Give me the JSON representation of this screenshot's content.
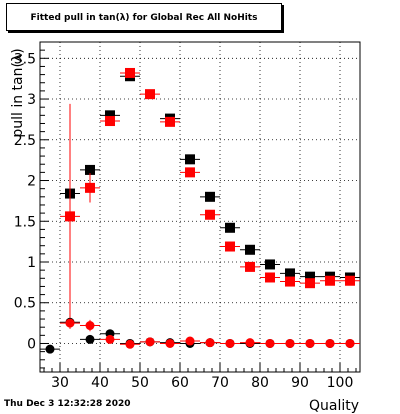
{
  "stamp": "Thu Dec  3 12:32:28 2020",
  "chart_data": {
    "type": "scatter",
    "title": "Fitted pull in tan(λ) for Global Rec All NoHits",
    "xlabel": "Quality",
    "ylabel": "pull in tan(λ)",
    "xlim": [
      25,
      105
    ],
    "ylim": [
      -0.35,
      3.7
    ],
    "xticks": [
      30,
      40,
      50,
      60,
      70,
      80,
      90,
      100
    ],
    "yticks": [
      0,
      0.5,
      1,
      1.5,
      2,
      2.5,
      3,
      3.5
    ],
    "grid": true,
    "series": [
      {
        "marker": "square",
        "color": "#000000",
        "points": [
          {
            "x": 32.5,
            "y": 1.84
          },
          {
            "x": 37.5,
            "y": 2.13
          },
          {
            "x": 42.5,
            "y": 2.8
          },
          {
            "x": 47.5,
            "y": 3.28
          },
          {
            "x": 57.5,
            "y": 2.76
          },
          {
            "x": 62.5,
            "y": 2.26
          },
          {
            "x": 67.5,
            "y": 1.8
          },
          {
            "x": 72.5,
            "y": 1.42
          },
          {
            "x": 77.5,
            "y": 1.15
          },
          {
            "x": 82.5,
            "y": 0.97
          },
          {
            "x": 87.5,
            "y": 0.86
          },
          {
            "x": 92.5,
            "y": 0.82
          },
          {
            "x": 97.5,
            "y": 0.82
          },
          {
            "x": 102.5,
            "y": 0.81
          }
        ]
      },
      {
        "marker": "square",
        "color": "#ff0000",
        "points": [
          {
            "x": 32.5,
            "y": 1.56,
            "yerr": 1.38
          },
          {
            "x": 37.5,
            "y": 1.91,
            "yerr": 0.18
          },
          {
            "x": 42.5,
            "y": 2.73
          },
          {
            "x": 47.5,
            "y": 3.32
          },
          {
            "x": 52.5,
            "y": 3.06
          },
          {
            "x": 57.5,
            "y": 2.72
          },
          {
            "x": 62.5,
            "y": 2.1
          },
          {
            "x": 67.5,
            "y": 1.58
          },
          {
            "x": 72.5,
            "y": 1.19
          },
          {
            "x": 77.5,
            "y": 0.94
          },
          {
            "x": 82.5,
            "y": 0.81
          },
          {
            "x": 87.5,
            "y": 0.76
          },
          {
            "x": 92.5,
            "y": 0.74
          },
          {
            "x": 97.5,
            "y": 0.77
          },
          {
            "x": 102.5,
            "y": 0.77
          }
        ]
      },
      {
        "marker": "circle",
        "color": "#000000",
        "points": [
          {
            "x": 27.5,
            "y": -0.07
          },
          {
            "x": 32.5,
            "y": 0.26
          },
          {
            "x": 37.5,
            "y": 0.05
          },
          {
            "x": 42.5,
            "y": 0.12
          },
          {
            "x": 47.5,
            "y": 0.0
          },
          {
            "x": 52.5,
            "y": 0.02
          },
          {
            "x": 57.5,
            "y": 0.01
          },
          {
            "x": 62.5,
            "y": 0.0
          },
          {
            "x": 67.5,
            "y": 0.01
          },
          {
            "x": 72.5,
            "y": 0.0
          },
          {
            "x": 77.5,
            "y": 0.0
          },
          {
            "x": 82.5,
            "y": 0.0
          },
          {
            "x": 87.5,
            "y": 0.0
          },
          {
            "x": 92.5,
            "y": 0.0
          },
          {
            "x": 97.5,
            "y": 0.0
          },
          {
            "x": 102.5,
            "y": 0.0
          }
        ]
      },
      {
        "marker": "circle",
        "color": "#ff0000",
        "points": [
          {
            "x": 32.5,
            "y": 0.25
          },
          {
            "x": 37.5,
            "y": 0.22,
            "yerr": 0.07
          },
          {
            "x": 42.5,
            "y": 0.05
          },
          {
            "x": 47.5,
            "y": -0.01
          },
          {
            "x": 52.5,
            "y": 0.02
          },
          {
            "x": 57.5,
            "y": 0.0
          },
          {
            "x": 62.5,
            "y": 0.03
          },
          {
            "x": 67.5,
            "y": 0.01
          },
          {
            "x": 72.5,
            "y": 0.0
          },
          {
            "x": 77.5,
            "y": 0.01
          },
          {
            "x": 82.5,
            "y": 0.0
          },
          {
            "x": 87.5,
            "y": 0.0
          },
          {
            "x": 92.5,
            "y": 0.0
          },
          {
            "x": 97.5,
            "y": 0.0
          },
          {
            "x": 102.5,
            "y": 0.0
          }
        ]
      }
    ]
  }
}
